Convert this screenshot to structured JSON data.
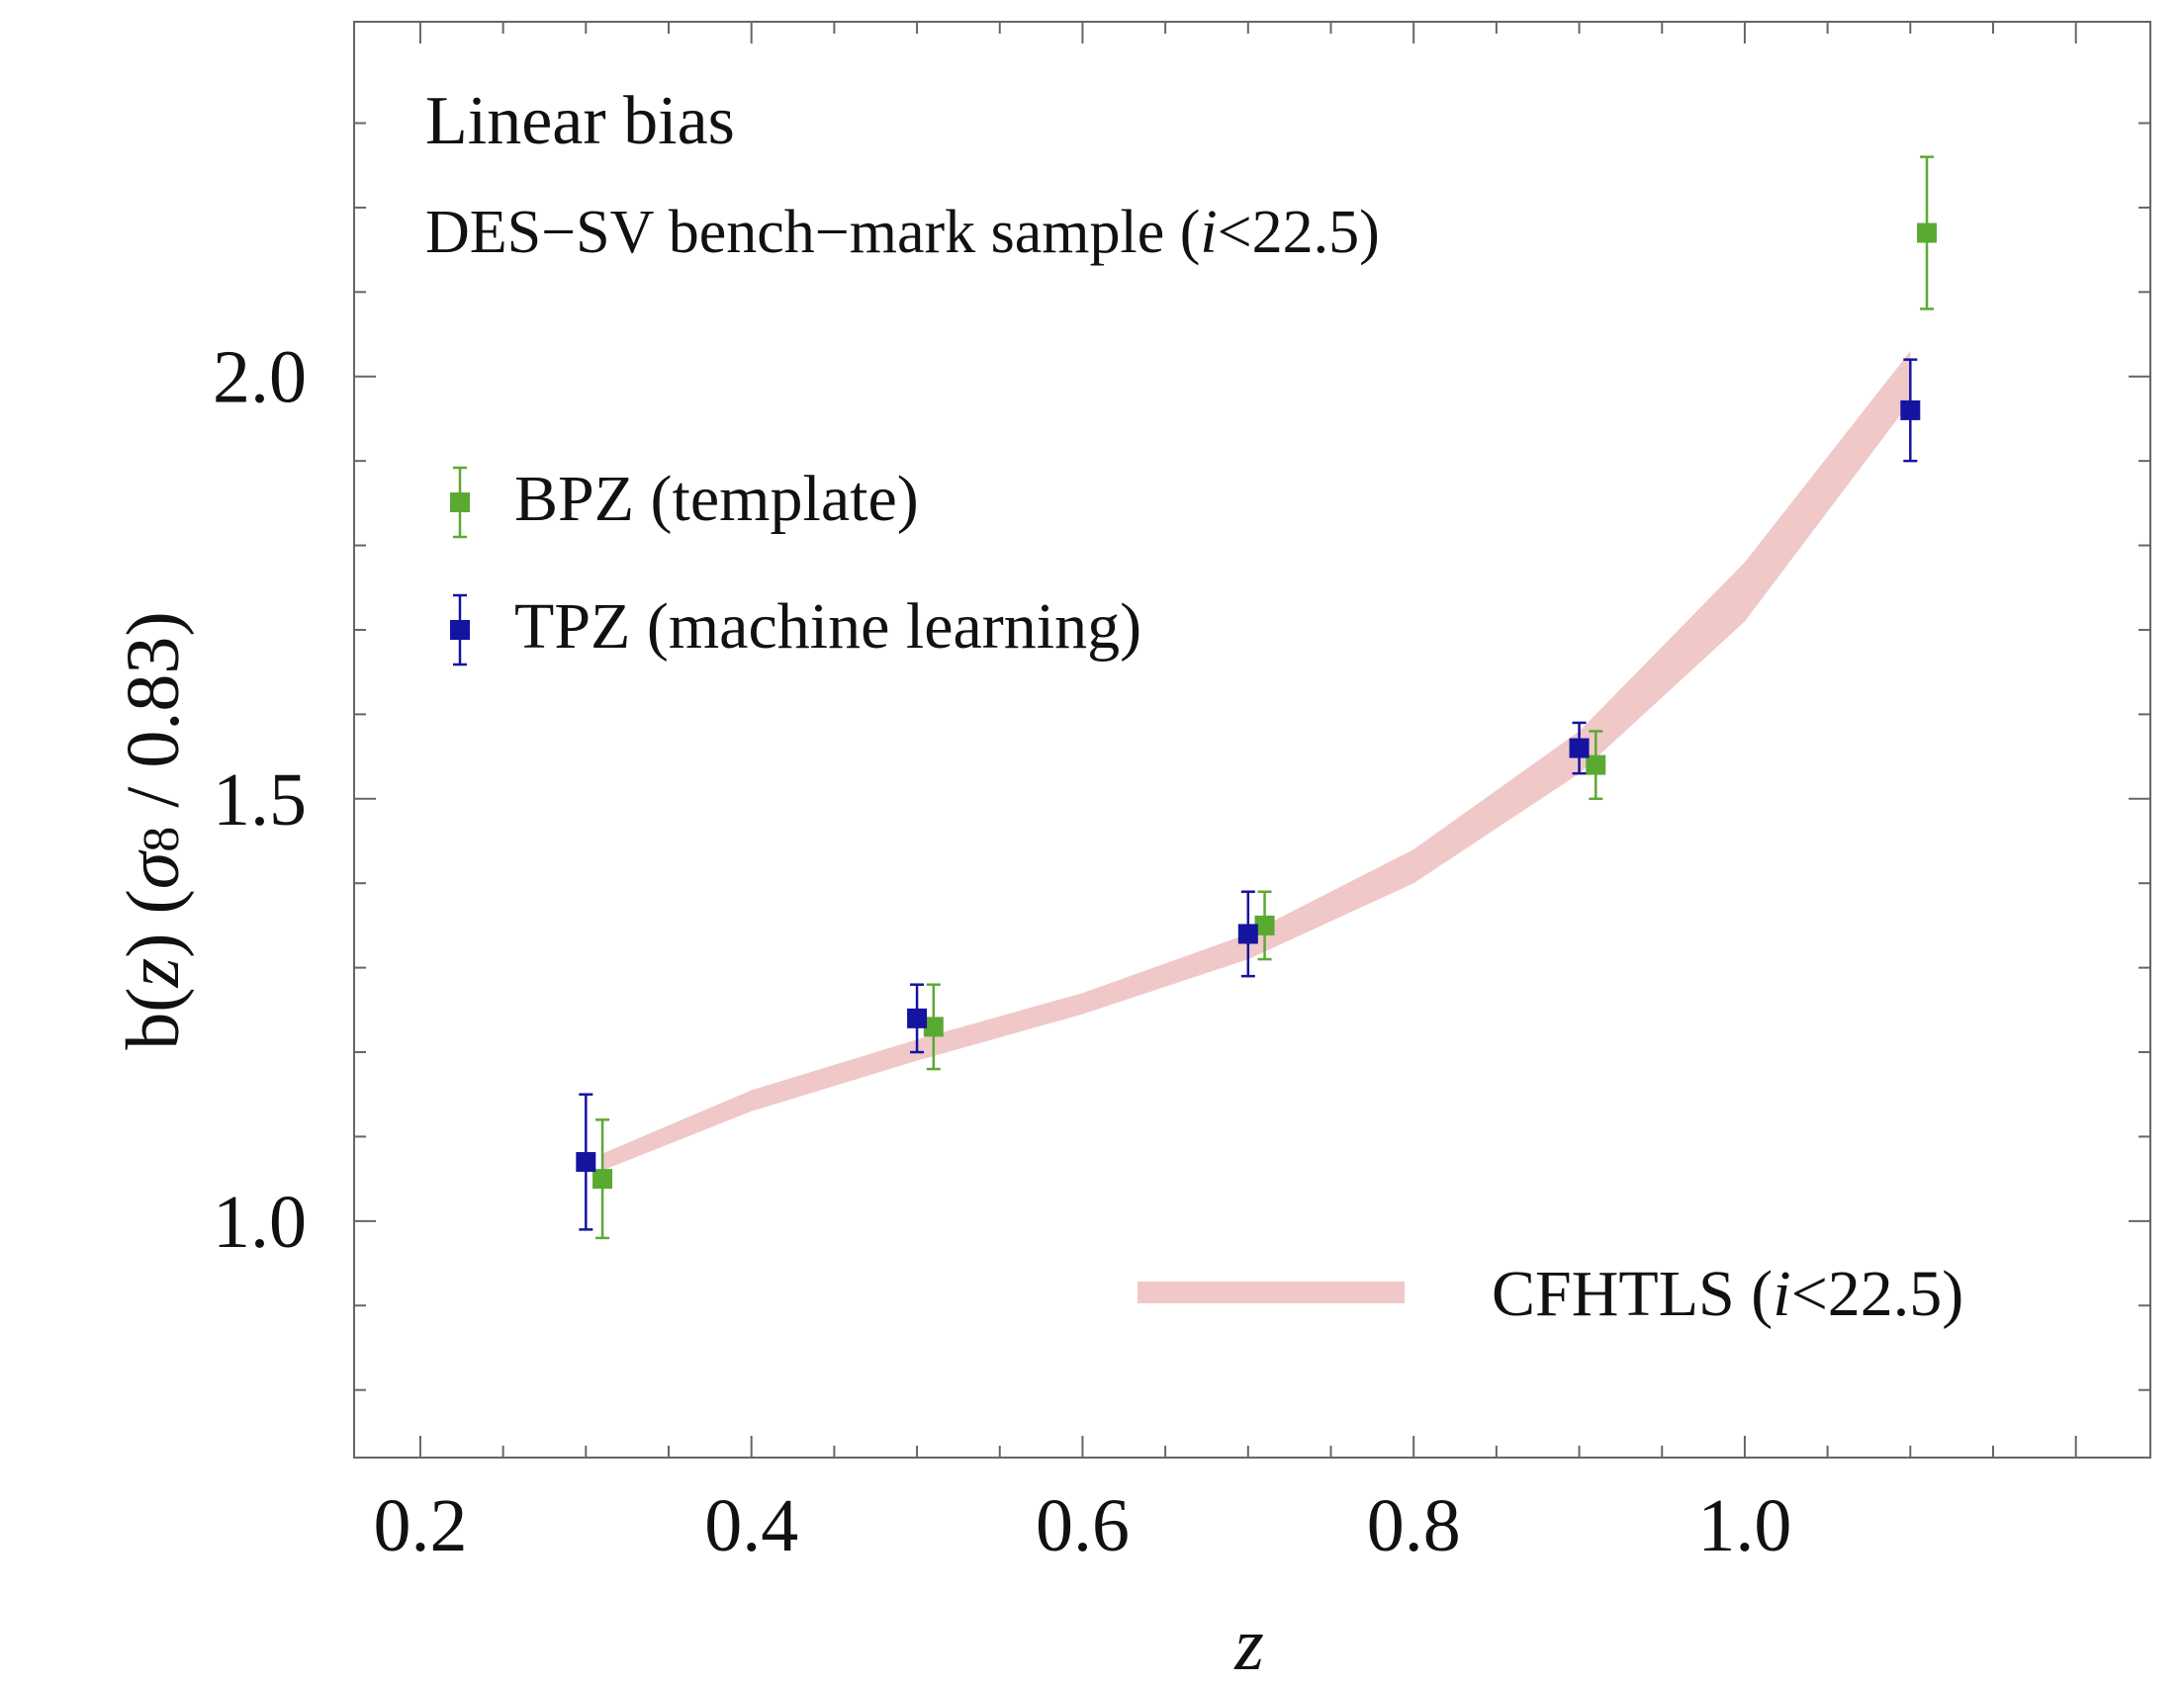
{
  "chart_data": {
    "type": "scatter",
    "title": "",
    "annotations": {
      "line1": "Linear bias",
      "line2_prefix": "DES−SV bench−mark sample (",
      "line2_ital": "i",
      "line2_suffix": "<22.5)"
    },
    "xlabel": "z",
    "ylabel_parts": {
      "a": "b(",
      "b": "z",
      "c": ") (",
      "d": "σ",
      "e": "8",
      "f": " / 0.83)"
    },
    "xlim": [
      0.16,
      1.245
    ],
    "ylim": [
      0.72,
      2.42
    ],
    "x_ticks": [
      0.2,
      0.4,
      0.6,
      0.8,
      1.0
    ],
    "x_tick_labels": [
      "0.2",
      "0.4",
      "0.6",
      "0.8",
      "1.0"
    ],
    "y_ticks": [
      1.0,
      1.5,
      2.0
    ],
    "y_tick_labels": [
      "1.0",
      "1.5",
      "2.0"
    ],
    "y_minor_step": 0.1,
    "x_minor_step": 0.05,
    "grid": false,
    "series": [
      {
        "name": "BPZ (template)",
        "color": "#5aaa32",
        "marker": "square",
        "points": [
          {
            "x": 0.31,
            "y": 1.05,
            "err": 0.07
          },
          {
            "x": 0.51,
            "y": 1.23,
            "err": 0.05
          },
          {
            "x": 0.71,
            "y": 1.35,
            "err": 0.04
          },
          {
            "x": 0.91,
            "y": 1.54,
            "err": 0.04
          },
          {
            "x": 1.11,
            "y": 2.17,
            "err": 0.09
          }
        ]
      },
      {
        "name": "TPZ (machine learning)",
        "color": "#1414a0",
        "marker": "square",
        "points": [
          {
            "x": 0.3,
            "y": 1.07,
            "err": 0.08
          },
          {
            "x": 0.5,
            "y": 1.24,
            "err": 0.04
          },
          {
            "x": 0.7,
            "y": 1.34,
            "err": 0.05
          },
          {
            "x": 0.9,
            "y": 1.56,
            "err": 0.03
          },
          {
            "x": 1.1,
            "y": 1.96,
            "err": 0.06
          }
        ]
      },
      {
        "name_prefix": "CFHTLS (",
        "name_ital": "i",
        "name_suffix": "<22.5)",
        "type": "band",
        "color": "#f0c8c8",
        "x": [
          0.31,
          0.4,
          0.5,
          0.6,
          0.7,
          0.8,
          0.9,
          1.0,
          1.1
        ],
        "lower": [
          1.06,
          1.13,
          1.19,
          1.245,
          1.31,
          1.4,
          1.53,
          1.71,
          1.97
        ],
        "upper": [
          1.08,
          1.155,
          1.215,
          1.27,
          1.34,
          1.44,
          1.58,
          1.78,
          2.03
        ]
      }
    ],
    "legend_position": "left (points), bottom-right (band)"
  }
}
